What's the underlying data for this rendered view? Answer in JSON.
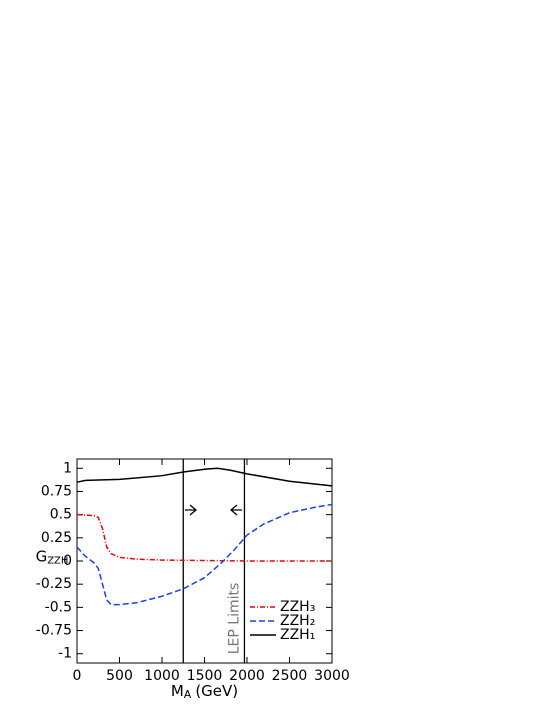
{
  "chart_data": {
    "type": "line",
    "x_label": "M",
    "x_label_sub": "A",
    "x_label_unit": "(GeV)",
    "y_label": "G",
    "y_label_sub": "ZZH",
    "annotation": "LEP Limits",
    "xlim": [
      0,
      3000
    ],
    "xticks": [
      0,
      500,
      1000,
      1500,
      2000,
      2500,
      3000
    ],
    "ylim": [
      -1.1,
      1.1
    ],
    "yticks": [
      -1,
      -0.75,
      -0.5,
      -0.25,
      0,
      0.25,
      0.5,
      0.75,
      1
    ],
    "vlines": [
      1250,
      1970
    ],
    "legend": "lower right",
    "series": [
      {
        "name": "ZZH₃",
        "color": "#e8000b",
        "dash": "dashdot",
        "x": [
          0,
          200,
          250,
          300,
          350,
          400,
          500,
          700,
          1000,
          1500,
          2000,
          3000
        ],
        "values": [
          0.5,
          0.49,
          0.47,
          0.35,
          0.15,
          0.08,
          0.04,
          0.02,
          0.01,
          0.005,
          0,
          0
        ]
      },
      {
        "name": "ZZH₂",
        "color": "#1f3fe0",
        "dash": "dashed",
        "x": [
          0,
          100,
          200,
          250,
          300,
          350,
          400,
          500,
          700,
          1000,
          1250,
          1500,
          1700,
          1850,
          2000,
          2200,
          2500,
          2800,
          3000
        ],
        "values": [
          0.15,
          0.05,
          -0.02,
          -0.08,
          -0.25,
          -0.42,
          -0.47,
          -0.47,
          -0.45,
          -0.38,
          -0.3,
          -0.18,
          -0.02,
          0.12,
          0.28,
          0.4,
          0.52,
          0.58,
          0.61
        ]
      },
      {
        "name": "ZZH₁",
        "color": "#000000",
        "dash": "solid",
        "x": [
          0,
          100,
          500,
          1000,
          1250,
          1500,
          1650,
          1800,
          2000,
          2500,
          3000
        ],
        "values": [
          0.85,
          0.87,
          0.88,
          0.92,
          0.96,
          0.99,
          1.0,
          0.98,
          0.94,
          0.86,
          0.81
        ]
      }
    ]
  }
}
